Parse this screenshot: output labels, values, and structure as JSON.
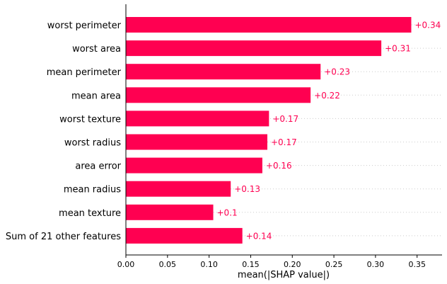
{
  "chart_data": {
    "type": "bar",
    "orientation": "horizontal",
    "xlabel": "mean(|SHAP value|)",
    "xlim": [
      0,
      0.38
    ],
    "xticks": [
      "0.00",
      "0.05",
      "0.10",
      "0.15",
      "0.20",
      "0.25",
      "0.30",
      "0.35"
    ],
    "grid": "dotted horizontal lines behind bars",
    "bar_color": "#ff0051",
    "categories": [
      "worst perimeter",
      "worst area",
      "mean perimeter",
      "mean area",
      "worst texture",
      "worst radius",
      "area error",
      "mean radius",
      "mean texture",
      "Sum of 21 other features"
    ],
    "values": [
      0.343,
      0.307,
      0.234,
      0.222,
      0.172,
      0.17,
      0.164,
      0.126,
      0.105,
      0.14
    ],
    "value_labels": [
      "+0.34",
      "+0.31",
      "+0.23",
      "+0.22",
      "+0.17",
      "+0.17",
      "+0.16",
      "+0.13",
      "+0.1",
      "+0.14"
    ]
  }
}
